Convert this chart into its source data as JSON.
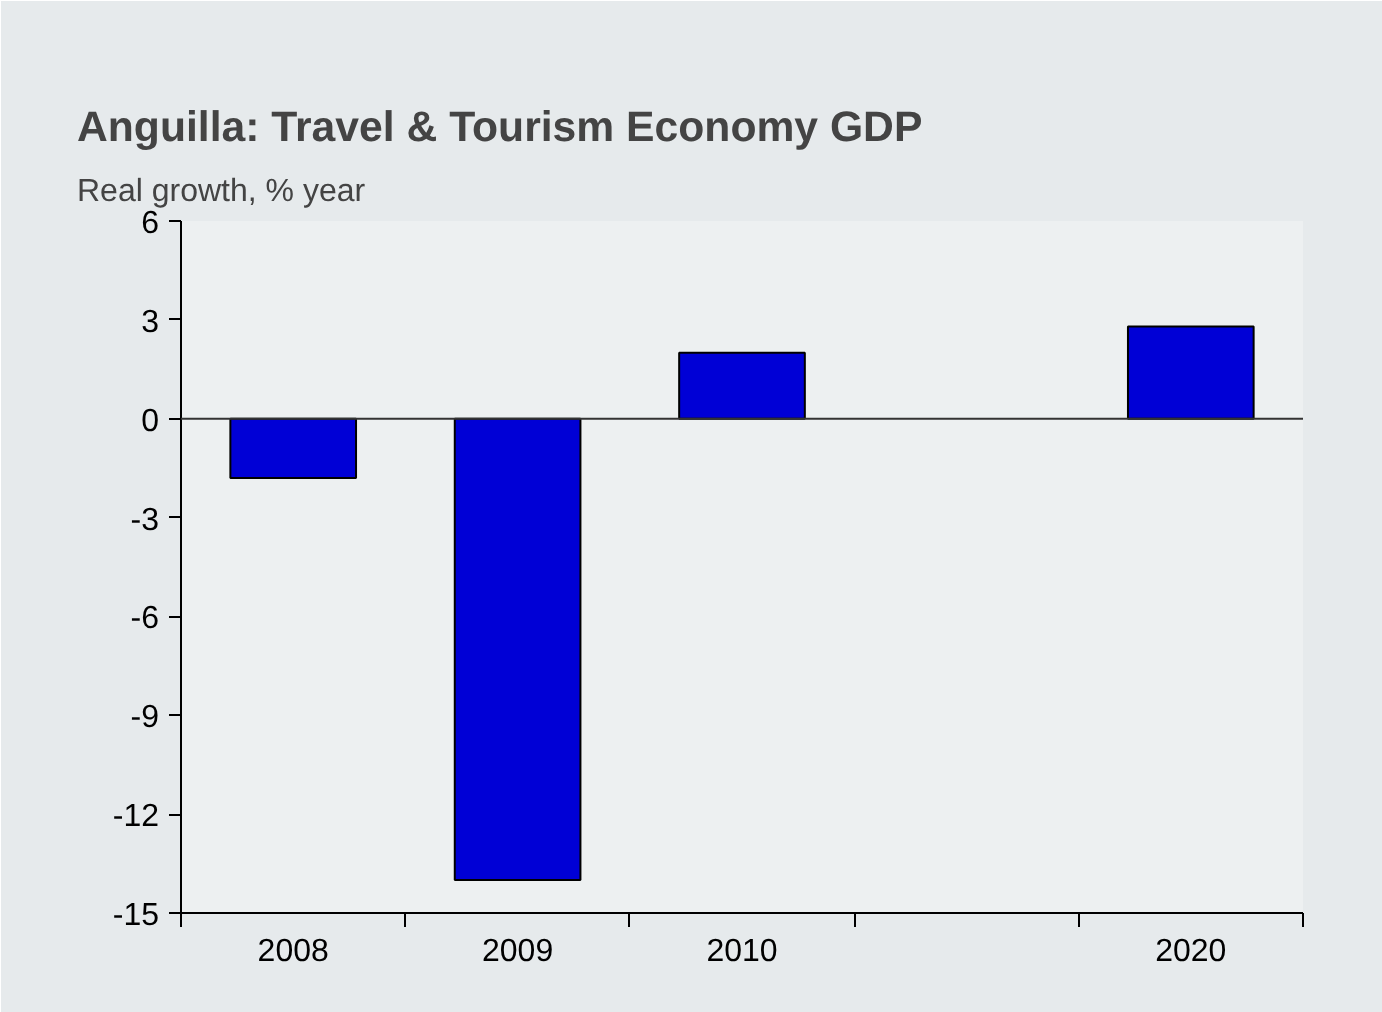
{
  "chart_data": {
    "type": "bar",
    "title": "Anguilla: Travel & Tourism Economy GDP",
    "ylabel": "Real growth, % year",
    "categories": [
      "2008",
      "2009",
      "2010",
      null,
      "2020"
    ],
    "series": [
      {
        "color": "#0000d6",
        "values": [
          -1.8,
          -14,
          2.0,
          null,
          2.8
        ]
      }
    ],
    "ylim": [
      -15,
      6
    ],
    "yticks": [
      -15,
      -12,
      -9,
      -6,
      -3,
      0,
      3,
      6
    ],
    "ref_lines": [
      {
        "axis": "y",
        "value": 0,
        "color": "#333333"
      }
    ],
    "grid": false
  }
}
